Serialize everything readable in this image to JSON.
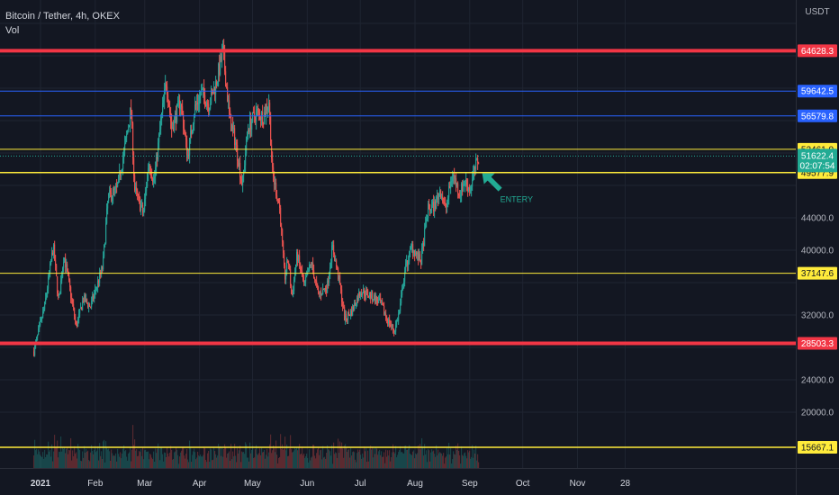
{
  "header": {
    "symbol_line": "Bitcoin / Tether, 4h, OKEX",
    "volume_label": "Vol",
    "currency": "USDT"
  },
  "colors": {
    "background": "#131722",
    "grid": "#1f2431",
    "up": "#26a69a",
    "down": "#ef5350",
    "red_level": "#f23645",
    "blue_level": "#2962ff",
    "yellow_level": "#ffeb3b",
    "current_price": "#22ab94"
  },
  "chart_data": {
    "type": "candlestick",
    "title": "Bitcoin / Tether, 4h, OKEX",
    "ylabel": "USDT",
    "y_ticks": [
      20000,
      24000,
      28000,
      32000,
      36000,
      40000,
      44000,
      48000,
      52000,
      56000,
      60000,
      64000,
      68000
    ],
    "y_ticks_labeled": [
      20000,
      24000,
      32000,
      40000,
      44000
    ],
    "x_ticks": [
      {
        "label": "2021",
        "date": "2021-01-01",
        "bold": true
      },
      {
        "label": "Feb",
        "date": "2021-02-01"
      },
      {
        "label": "Mar",
        "date": "2021-03-01"
      },
      {
        "label": "Apr",
        "date": "2021-04-01"
      },
      {
        "label": "May",
        "date": "2021-05-01"
      },
      {
        "label": "Jun",
        "date": "2021-06-01"
      },
      {
        "label": "Jul",
        "date": "2021-07-01"
      },
      {
        "label": "Aug",
        "date": "2021-08-01"
      },
      {
        "label": "Sep",
        "date": "2021-09-01"
      },
      {
        "label": "Oct",
        "date": "2021-10-01"
      },
      {
        "label": "Nov",
        "date": "2021-11-01"
      },
      {
        "label": "28",
        "date": "2021-11-28"
      }
    ],
    "horizontal_levels": [
      {
        "price": 64628.3,
        "label": "64628.3",
        "style": "red",
        "width": 4
      },
      {
        "price": 59642.5,
        "label": "59642.5",
        "style": "blue",
        "width": 1
      },
      {
        "price": 56579.8,
        "label": "56579.8",
        "style": "blue",
        "width": 1
      },
      {
        "price": 52461.0,
        "label": "52461.0",
        "style": "yellow",
        "width": 1
      },
      {
        "price": 49577.9,
        "label": "49577.9",
        "style": "yellow",
        "width": 1.5
      },
      {
        "price": 37147.6,
        "label": "37147.6",
        "style": "yellow",
        "width": 1
      },
      {
        "price": 28503.3,
        "label": "28503.3",
        "style": "red",
        "width": 4
      },
      {
        "price": 15667.1,
        "label": "15667.1",
        "style": "yellow",
        "width": 1.5
      }
    ],
    "current_price": {
      "price": 51622.4,
      "label": "51622.4",
      "countdown": "02:07:54"
    },
    "annotation": {
      "text": "ENTERY",
      "date": "2021-09-06",
      "price": 48600
    },
    "price_path": [
      [
        "2020-12-28",
        27500
      ],
      [
        "2021-01-03",
        33000
      ],
      [
        "2021-01-08",
        40500
      ],
      [
        "2021-01-11",
        33500
      ],
      [
        "2021-01-14",
        39500
      ],
      [
        "2021-01-21",
        30500
      ],
      [
        "2021-01-25",
        34000
      ],
      [
        "2021-01-29",
        33000
      ],
      [
        "2021-02-05",
        38000
      ],
      [
        "2021-02-08",
        46500
      ],
      [
        "2021-02-13",
        47500
      ],
      [
        "2021-02-17",
        52000
      ],
      [
        "2021-02-21",
        57500
      ],
      [
        "2021-02-23",
        47500
      ],
      [
        "2021-02-28",
        44500
      ],
      [
        "2021-03-03",
        51000
      ],
      [
        "2021-03-06",
        48500
      ],
      [
        "2021-03-10",
        56000
      ],
      [
        "2021-03-13",
        61000
      ],
      [
        "2021-03-16",
        55000
      ],
      [
        "2021-03-21",
        58500
      ],
      [
        "2021-03-25",
        51500
      ],
      [
        "2021-03-29",
        57500
      ],
      [
        "2021-04-02",
        59500
      ],
      [
        "2021-04-06",
        58000
      ],
      [
        "2021-04-10",
        60500
      ],
      [
        "2021-04-14",
        64500
      ],
      [
        "2021-04-18",
        56000
      ],
      [
        "2021-04-21",
        53500
      ],
      [
        "2021-04-25",
        48000
      ],
      [
        "2021-04-28",
        55000
      ],
      [
        "2021-05-03",
        57000
      ],
      [
        "2021-05-07",
        56500
      ],
      [
        "2021-05-10",
        58500
      ],
      [
        "2021-05-12",
        49500
      ],
      [
        "2021-05-16",
        45500
      ],
      [
        "2021-05-19",
        36500
      ],
      [
        "2021-05-21",
        39000
      ],
      [
        "2021-05-23",
        34000
      ],
      [
        "2021-05-26",
        39500
      ],
      [
        "2021-05-30",
        35500
      ],
      [
        "2021-06-03",
        38500
      ],
      [
        "2021-06-07",
        34500
      ],
      [
        "2021-06-12",
        35500
      ],
      [
        "2021-06-15",
        40500
      ],
      [
        "2021-06-19",
        36000
      ],
      [
        "2021-06-22",
        31500
      ],
      [
        "2021-06-26",
        32500
      ],
      [
        "2021-07-01",
        35000
      ],
      [
        "2021-07-06",
        34500
      ],
      [
        "2021-07-12",
        33500
      ],
      [
        "2021-07-16",
        31500
      ],
      [
        "2021-07-20",
        30000
      ],
      [
        "2021-07-23",
        32500
      ],
      [
        "2021-07-26",
        37500
      ],
      [
        "2021-07-30",
        40500
      ],
      [
        "2021-08-04",
        38500
      ],
      [
        "2021-08-08",
        45000
      ],
      [
        "2021-08-12",
        45500
      ],
      [
        "2021-08-15",
        47500
      ],
      [
        "2021-08-18",
        45000
      ],
      [
        "2021-08-22",
        49500
      ],
      [
        "2021-08-26",
        47000
      ],
      [
        "2021-08-29",
        48500
      ],
      [
        "2021-09-01",
        47500
      ],
      [
        "2021-09-03",
        49500
      ],
      [
        "2021-09-05",
        51000
      ],
      [
        "2021-09-06",
        51622.4
      ]
    ],
    "y_range": [
      15000,
      69000
    ]
  }
}
